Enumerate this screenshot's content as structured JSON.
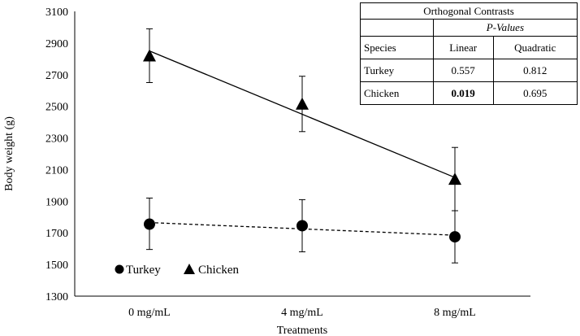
{
  "chart_data": {
    "type": "line",
    "xlabel": "Treatments",
    "ylabel": "Body weight (g)",
    "categories": [
      "0 mg/mL",
      "4 mg/mL",
      "8 mg/mL"
    ],
    "ylim": [
      1300,
      3100
    ],
    "yticks": [
      1300,
      1500,
      1700,
      1900,
      2100,
      2300,
      2500,
      2700,
      2900,
      3100
    ],
    "grid": false,
    "legend_position": "bottom-left",
    "series": [
      {
        "name": "Turkey",
        "marker": "circle",
        "values": [
          1755,
          1745,
          1675
        ],
        "error_low": [
          1595,
          1580,
          1510
        ],
        "error_high": [
          1920,
          1910,
          1840
        ],
        "trend": {
          "style": "dashed",
          "start": 1765,
          "end": 1685
        }
      },
      {
        "name": "Chicken",
        "marker": "triangle",
        "values": [
          2820,
          2515,
          2040
        ],
        "error_low": [
          2650,
          2340,
          1840
        ],
        "error_high": [
          2990,
          2690,
          2240
        ],
        "trend": {
          "style": "solid",
          "start": 2850,
          "end": 2050
        }
      }
    ],
    "contrasts_table": {
      "title": "Orthogonal Contrasts",
      "subheader": "P-Values",
      "columns": [
        "Species",
        "Linear",
        "Quadratic"
      ],
      "rows": [
        [
          "Turkey",
          "0.557",
          "0.812"
        ],
        [
          "Chicken",
          "0.019",
          "0.695"
        ]
      ]
    }
  }
}
